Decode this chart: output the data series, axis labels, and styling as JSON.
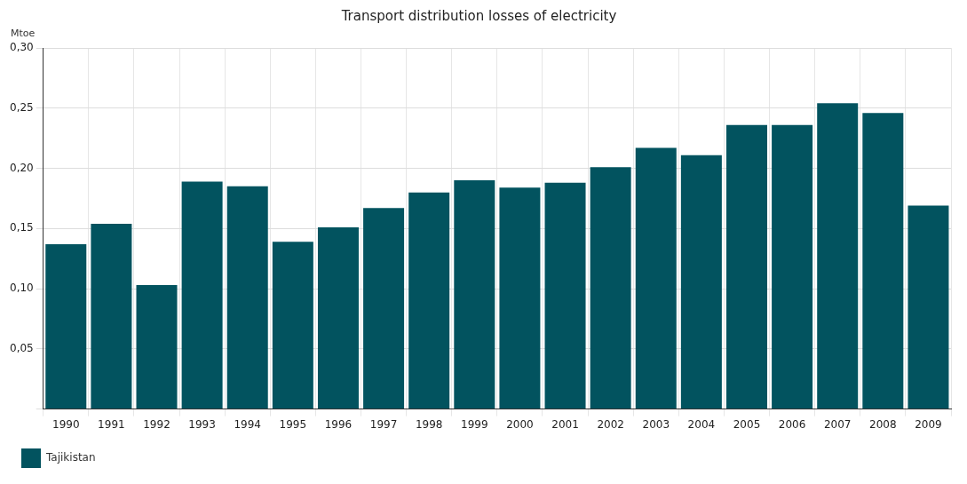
{
  "chart_data": {
    "type": "bar",
    "title": "Transport distribution losses of electricity",
    "ylabel": "Mtoe",
    "categories": [
      "1990",
      "1991",
      "1992",
      "1993",
      "1994",
      "1995",
      "1996",
      "1997",
      "1998",
      "1999",
      "2000",
      "2001",
      "2002",
      "2003",
      "2004",
      "2005",
      "2006",
      "2007",
      "2008",
      "2009"
    ],
    "series": [
      {
        "name": "Tajikistan",
        "color": "#02535f",
        "values": [
          0.137,
          0.154,
          0.103,
          0.189,
          0.185,
          0.139,
          0.151,
          0.167,
          0.18,
          0.19,
          0.184,
          0.188,
          0.201,
          0.217,
          0.211,
          0.236,
          0.236,
          0.254,
          0.246,
          0.169
        ]
      }
    ],
    "ylim": [
      0,
      0.3
    ],
    "yticks": [
      {
        "value": 0,
        "label": null
      },
      {
        "value": 0.05,
        "label": "0,05"
      },
      {
        "value": 0.1,
        "label": "0,10"
      },
      {
        "value": 0.15,
        "label": "0,15"
      },
      {
        "value": 0.2,
        "label": "0,20"
      },
      {
        "value": 0.25,
        "label": "0,25"
      },
      {
        "value": 0.3,
        "label": "0,30"
      }
    ],
    "grid": true,
    "legend": "bottom left"
  }
}
